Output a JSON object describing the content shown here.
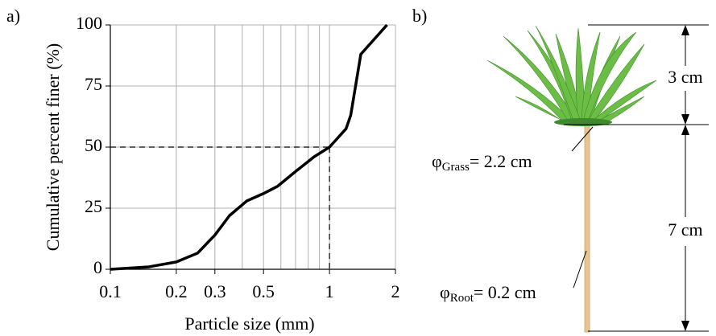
{
  "panel_labels": [
    "a)",
    "b)"
  ],
  "chart_data": {
    "type": "line",
    "xlabel": "Particle size (mm)",
    "ylabel": "Cumulative percent finer (%)",
    "x": [
      0.1,
      0.15,
      0.2,
      0.25,
      0.3,
      0.35,
      0.42,
      0.5,
      0.58,
      0.7,
      0.85,
      1,
      1.19,
      1.25,
      1.39,
      1.83
    ],
    "values": [
      0,
      1,
      3,
      6.6,
      14,
      22,
      28,
      31,
      34,
      40,
      46,
      50,
      57.5,
      63,
      88,
      100
    ],
    "color": "#000000",
    "xscale": "log",
    "xlim": [
      0.1,
      2
    ],
    "xticks": [
      0.1,
      0.2,
      0.3,
      0.5,
      1,
      2
    ],
    "x_minor_grid": [
      0.4,
      0.6,
      0.7,
      0.8,
      0.9
    ],
    "ylim": [
      0,
      100
    ],
    "yticks": [
      0,
      25,
      50,
      75,
      100
    ],
    "grid": true,
    "reference_point": {
      "x": 1,
      "y": 50
    }
  },
  "diagram": {
    "grass_height": "3 cm",
    "root_length": "7 cm",
    "grass_diameter": {
      "symbol": "φ",
      "subscript": "Grass",
      "text": "= 2.2 cm"
    },
    "root_diameter": {
      "symbol": "φ",
      "subscript": "Root",
      "text": "= 0.2 cm"
    }
  }
}
